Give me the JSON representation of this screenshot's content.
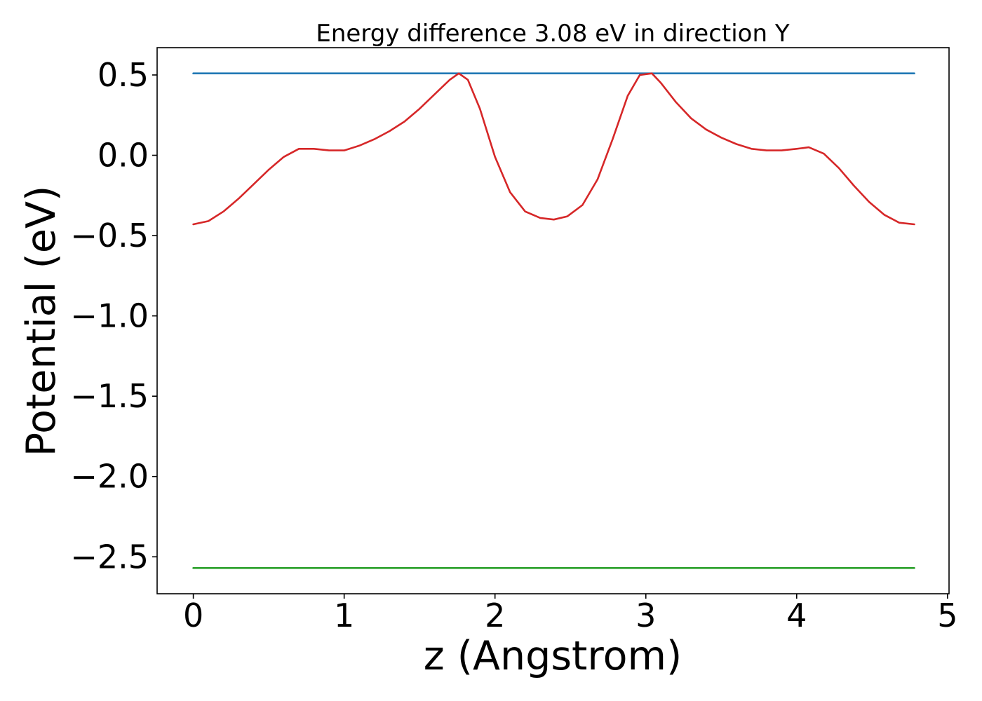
{
  "chart_data": {
    "type": "line",
    "title": "Energy difference 3.08 eV in direction Y",
    "xlabel": "z (Angstrom)",
    "ylabel": "Potential (eV)",
    "xlim": [
      -0.24,
      5.01
    ],
    "ylim": [
      -2.73,
      0.67
    ],
    "xticks": [
      0,
      1,
      2,
      3,
      4,
      5
    ],
    "xtick_labels": [
      "0",
      "1",
      "2",
      "3",
      "4",
      "5"
    ],
    "yticks": [
      0.5,
      0.0,
      -0.5,
      -1.0,
      -1.5,
      -2.0,
      -2.5
    ],
    "ytick_labels": [
      "0.5",
      "0.0",
      "−0.5",
      "−1.0",
      "−1.5",
      "−2.0",
      "−2.5"
    ],
    "grid": false,
    "series": [
      {
        "color": "#1f77b4",
        "x": [
          0,
          4.78
        ],
        "y": [
          0.51,
          0.51
        ]
      },
      {
        "color": "#2ca02c",
        "x": [
          0,
          4.78
        ],
        "y": [
          -2.57,
          -2.57
        ]
      },
      {
        "color": "#d62728",
        "x": [
          0,
          0.1,
          0.2,
          0.3,
          0.4,
          0.5,
          0.6,
          0.7,
          0.8,
          0.9,
          1.0,
          1.1,
          1.2,
          1.3,
          1.4,
          1.5,
          1.6,
          1.7,
          1.76,
          1.82,
          1.9,
          2.0,
          2.1,
          2.2,
          2.3,
          2.39,
          2.48,
          2.58,
          2.68,
          2.78,
          2.88,
          2.96,
          3.04,
          3.1,
          3.2,
          3.3,
          3.4,
          3.5,
          3.6,
          3.7,
          3.8,
          3.9,
          4.0,
          4.08,
          4.18,
          4.28,
          4.38,
          4.48,
          4.58,
          4.68,
          4.78
        ],
        "y": [
          -0.43,
          -0.41,
          -0.35,
          -0.27,
          -0.18,
          -0.09,
          -0.01,
          0.04,
          0.04,
          0.03,
          0.03,
          0.06,
          0.1,
          0.15,
          0.21,
          0.29,
          0.38,
          0.47,
          0.51,
          0.47,
          0.29,
          -0.01,
          -0.23,
          -0.35,
          -0.39,
          -0.4,
          -0.38,
          -0.31,
          -0.15,
          0.1,
          0.37,
          0.5,
          0.51,
          0.45,
          0.33,
          0.23,
          0.16,
          0.11,
          0.07,
          0.04,
          0.03,
          0.03,
          0.04,
          0.05,
          0.01,
          -0.08,
          -0.19,
          -0.29,
          -0.37,
          -0.42,
          -0.43
        ]
      }
    ]
  }
}
